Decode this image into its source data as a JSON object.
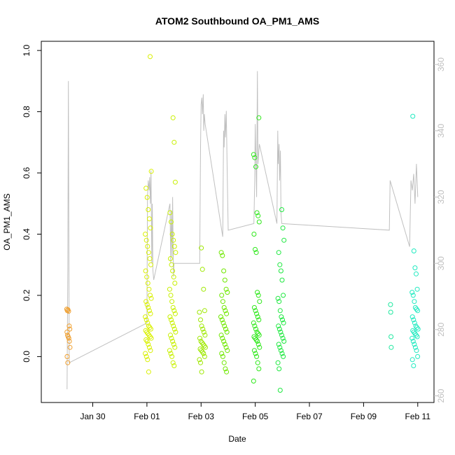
{
  "chart_data": {
    "type": "scatter",
    "title": "ATOM2 Southbound OA_PM1_AMS",
    "xlabel": "Date",
    "ylabel": "OA_PM1_AMS",
    "x_tick_labels": [
      "Jan 30",
      "Feb 01",
      "Feb 03",
      "Feb 05",
      "Feb 07",
      "Feb 09",
      "Feb 11"
    ],
    "x_tick_days": [
      1,
      3,
      5,
      7,
      9,
      11,
      13
    ],
    "xlim_days": [
      -0.9,
      13.6
    ],
    "ylim": [
      -0.15,
      1.03
    ],
    "y_ticks": [
      0.0,
      0.2,
      0.4,
      0.6,
      0.8,
      1.0
    ],
    "y_tick_labels": [
      "0.0",
      "0.2",
      "0.4",
      "0.6",
      "0.8",
      "1.0"
    ],
    "y2_ticks": [
      260,
      280,
      300,
      320,
      340,
      360
    ],
    "y2_tick_labels": [
      "260",
      "280",
      "300",
      "320",
      "340",
      "360"
    ],
    "y2lim": [
      258,
      367
    ],
    "series": [
      {
        "name": "OA_PM1_AMS points (group 1)",
        "color": "#f0a030",
        "day": 0.1,
        "spread": 0.12,
        "values": [
          0.155,
          0.15,
          0.153,
          0.148,
          0.1,
          0.09,
          0.08,
          0.07,
          0.065,
          0.06,
          0.05,
          0.03,
          0.0,
          -0.02
        ]
      },
      {
        "name": "OA_PM1_AMS points (group 2)",
        "color": "#d9f000",
        "day": 3.05,
        "spread": 0.22,
        "values": [
          0.98,
          0.605,
          0.55,
          0.52,
          0.48,
          0.45,
          0.42,
          0.4,
          0.38,
          0.36,
          0.34,
          0.32,
          0.3,
          0.28,
          0.26,
          0.24,
          0.22,
          0.2,
          0.19,
          0.18,
          0.17,
          0.16,
          0.15,
          0.14,
          0.13,
          0.12,
          0.11,
          0.1,
          0.095,
          0.09,
          0.085,
          0.08,
          0.075,
          0.07,
          0.065,
          0.06,
          0.055,
          0.05,
          0.04,
          0.03,
          0.02,
          0.01,
          0.0,
          -0.01,
          -0.05
        ]
      },
      {
        "name": "OA_PM1_AMS points (group 3)",
        "color": "#c8f000",
        "day": 3.95,
        "spread": 0.22,
        "values": [
          0.78,
          0.7,
          0.57,
          0.47,
          0.44,
          0.4,
          0.38,
          0.36,
          0.34,
          0.32,
          0.3,
          0.28,
          0.26,
          0.24,
          0.22,
          0.2,
          0.18,
          0.16,
          0.15,
          0.14,
          0.13,
          0.12,
          0.11,
          0.1,
          0.09,
          0.08,
          0.07,
          0.06,
          0.05,
          0.04,
          0.03,
          0.02,
          0.01,
          0.0,
          -0.02,
          -0.03
        ]
      },
      {
        "name": "OA_PM1_AMS points (group 4)",
        "color": "#9ee800",
        "day": 5.05,
        "spread": 0.22,
        "values": [
          0.355,
          0.285,
          0.22,
          0.15,
          0.145,
          0.12,
          0.1,
          0.09,
          0.08,
          0.07,
          0.06,
          0.05,
          0.045,
          0.04,
          0.035,
          0.03,
          0.025,
          0.02,
          0.015,
          0.01,
          0.0,
          -0.01,
          -0.02,
          -0.05
        ]
      },
      {
        "name": "OA_PM1_AMS points (group 5)",
        "color": "#6fe800",
        "day": 5.85,
        "spread": 0.24,
        "values": [
          0.34,
          0.33,
          0.28,
          0.25,
          0.22,
          0.21,
          0.2,
          0.18,
          0.16,
          0.15,
          0.14,
          0.13,
          0.12,
          0.11,
          0.1,
          0.09,
          0.08,
          0.07,
          0.06,
          0.05,
          0.04,
          0.03,
          0.02,
          0.01,
          0.0,
          -0.02,
          -0.04,
          -0.05
        ]
      },
      {
        "name": "OA_PM1_AMS points (group 6)",
        "color": "#2ee81a",
        "day": 7.05,
        "spread": 0.22,
        "values": [
          0.78,
          0.66,
          0.65,
          0.62,
          0.47,
          0.46,
          0.44,
          0.4,
          0.35,
          0.34,
          0.21,
          0.2,
          0.18,
          0.16,
          0.15,
          0.14,
          0.13,
          0.12,
          0.11,
          0.1,
          0.09,
          0.08,
          0.075,
          0.07,
          0.065,
          0.06,
          0.055,
          0.05,
          0.04,
          0.03,
          0.02,
          0.01,
          0.0,
          -0.02,
          -0.04,
          -0.08
        ]
      },
      {
        "name": "OA_PM1_AMS points (group 7)",
        "color": "#1ee840",
        "day": 7.95,
        "spread": 0.22,
        "values": [
          0.48,
          0.42,
          0.38,
          0.34,
          0.3,
          0.28,
          0.25,
          0.2,
          0.19,
          0.18,
          0.15,
          0.13,
          0.12,
          0.11,
          0.1,
          0.09,
          0.08,
          0.07,
          0.06,
          0.05,
          0.04,
          0.03,
          0.02,
          0.01,
          0.0,
          -0.02,
          -0.04,
          -0.11
        ]
      },
      {
        "name": "OA_PM1_AMS points (group 8)",
        "color": "#20e8a0",
        "day": 12.0,
        "spread": 0.05,
        "values": [
          0.17,
          0.145,
          0.065,
          0.03
        ]
      },
      {
        "name": "OA_PM1_AMS points (group 9)",
        "color": "#20eac0",
        "day": 12.9,
        "spread": 0.22,
        "values": [
          0.785,
          0.345,
          0.29,
          0.27,
          0.22,
          0.21,
          0.2,
          0.18,
          0.16,
          0.155,
          0.15,
          0.13,
          0.12,
          0.11,
          0.1,
          0.095,
          0.09,
          0.085,
          0.08,
          0.075,
          0.07,
          0.065,
          0.06,
          0.05,
          0.04,
          0.03,
          0.02,
          0.0,
          -0.01,
          -0.03
        ]
      }
    ],
    "secondary_line": {
      "name": "secondary axis trace",
      "color": "#c0c0c0",
      "points": [
        [
          0.05,
          262
        ],
        [
          0.08,
          300
        ],
        [
          0.1,
          355
        ],
        [
          0.13,
          270
        ],
        [
          3.0,
          282
        ],
        [
          3.02,
          320
        ],
        [
          3.05,
          325
        ],
        [
          3.08,
          322
        ],
        [
          3.1,
          326
        ],
        [
          3.13,
          318
        ],
        [
          3.15,
          328
        ],
        [
          3.18,
          300
        ],
        [
          3.2,
          318
        ],
        [
          3.22,
          298
        ],
        [
          3.25,
          295
        ],
        [
          3.85,
          318
        ],
        [
          3.88,
          300
        ],
        [
          3.9,
          316
        ],
        [
          3.93,
          302
        ],
        [
          3.95,
          320
        ],
        [
          3.98,
          296
        ],
        [
          4.0,
          300
        ],
        [
          4.95,
          300
        ],
        [
          4.98,
          335
        ],
        [
          5.0,
          348
        ],
        [
          5.03,
          350
        ],
        [
          5.05,
          345
        ],
        [
          5.08,
          351
        ],
        [
          5.1,
          340
        ],
        [
          5.12,
          345
        ],
        [
          5.15,
          342
        ],
        [
          5.8,
          308
        ],
        [
          5.83,
          340
        ],
        [
          5.85,
          335
        ],
        [
          5.88,
          345
        ],
        [
          5.9,
          338
        ],
        [
          5.93,
          346
        ],
        [
          5.96,
          330
        ],
        [
          6.0,
          310
        ],
        [
          6.95,
          312
        ],
        [
          6.98,
          325
        ],
        [
          7.0,
          342
        ],
        [
          7.05,
          320
        ],
        [
          7.08,
          358
        ],
        [
          7.1,
          330
        ],
        [
          7.15,
          336
        ],
        [
          7.8,
          312
        ],
        [
          7.83,
          340
        ],
        [
          7.85,
          330
        ],
        [
          7.88,
          336
        ],
        [
          7.9,
          325
        ],
        [
          7.93,
          334
        ],
        [
          7.95,
          315
        ],
        [
          7.98,
          312
        ],
        [
          11.95,
          310
        ],
        [
          11.98,
          325
        ],
        [
          12.7,
          305
        ],
        [
          12.75,
          325
        ],
        [
          12.8,
          322
        ],
        [
          12.85,
          327
        ],
        [
          12.9,
          318
        ],
        [
          12.95,
          330
        ],
        [
          13.0,
          320
        ]
      ]
    }
  }
}
